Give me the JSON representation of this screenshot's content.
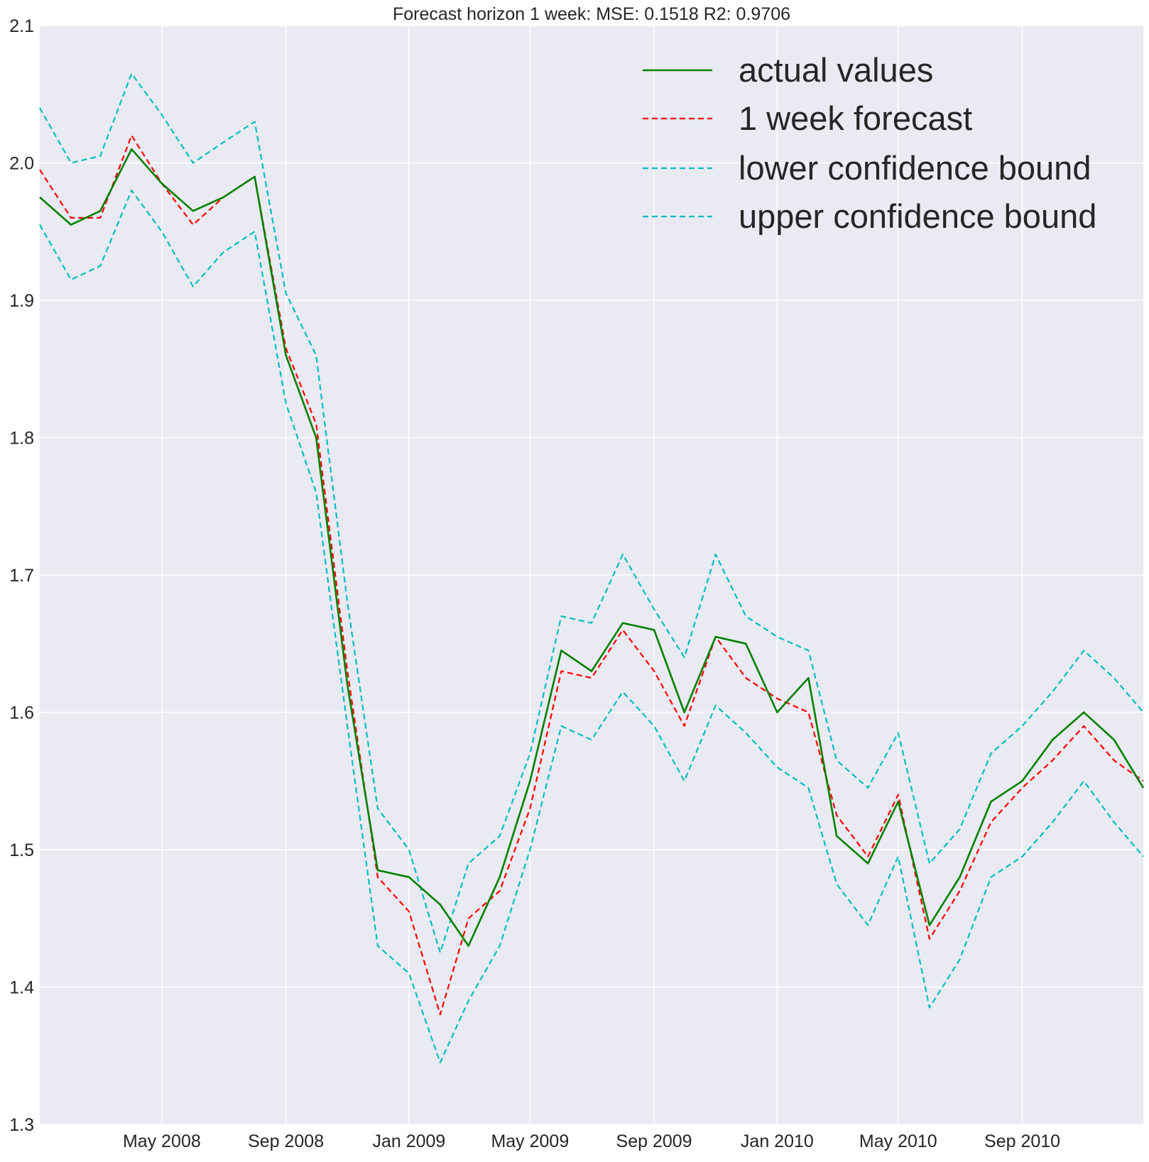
{
  "chart_data": {
    "type": "line",
    "title": "Forecast horizon 1 week:  MSE: 0.1518  R2: 0.9706",
    "xlabel": "",
    "ylabel": "",
    "ylim": [
      1.3,
      2.1
    ],
    "yticks": [
      "1.3",
      "1.4",
      "1.5",
      "1.6",
      "1.7",
      "1.8",
      "1.9",
      "2.0",
      "2.1"
    ],
    "xlim": [
      "2008-01-01",
      "2010-12-30"
    ],
    "xticks": [
      {
        "label": "May 2008",
        "date": "2008-05-01"
      },
      {
        "label": "Sep 2008",
        "date": "2008-09-01"
      },
      {
        "label": "Jan 2009",
        "date": "2009-01-01"
      },
      {
        "label": "May 2009",
        "date": "2009-05-01"
      },
      {
        "label": "Sep 2009",
        "date": "2009-09-01"
      },
      {
        "label": "Jan 2010",
        "date": "2010-01-01"
      },
      {
        "label": "May 2010",
        "date": "2010-05-01"
      },
      {
        "label": "Sep 2010",
        "date": "2010-09-01"
      }
    ],
    "grid": true,
    "legend_position": "top-right",
    "colors": {
      "background": "#eaeaf2",
      "grid": "#ffffff",
      "actual": "#008000",
      "forecast": "#ff0000",
      "bounds": "#00bfbf"
    },
    "x": [
      "2008-01-01",
      "2008-02-01",
      "2008-03-01",
      "2008-04-01",
      "2008-05-01",
      "2008-06-01",
      "2008-07-01",
      "2008-08-01",
      "2008-09-01",
      "2008-10-01",
      "2008-11-01",
      "2008-12-01",
      "2009-01-01",
      "2009-02-01",
      "2009-03-01",
      "2009-04-01",
      "2009-05-01",
      "2009-06-01",
      "2009-07-01",
      "2009-08-01",
      "2009-09-01",
      "2009-10-01",
      "2009-11-01",
      "2009-12-01",
      "2010-01-01",
      "2010-02-01",
      "2010-03-01",
      "2010-04-01",
      "2010-05-01",
      "2010-06-01",
      "2010-07-01",
      "2010-08-01",
      "2010-09-01",
      "2010-10-01",
      "2010-11-01",
      "2010-12-01",
      "2010-12-30"
    ],
    "series": [
      {
        "name": "actual values",
        "style": "solid",
        "values": [
          1.975,
          1.955,
          1.965,
          2.01,
          1.985,
          1.965,
          1.975,
          1.99,
          1.86,
          1.8,
          1.62,
          1.485,
          1.48,
          1.46,
          1.43,
          1.48,
          1.55,
          1.645,
          1.63,
          1.665,
          1.66,
          1.6,
          1.655,
          1.65,
          1.6,
          1.625,
          1.51,
          1.49,
          1.535,
          1.445,
          1.48,
          1.535,
          1.55,
          1.58,
          1.6,
          1.58,
          1.545
        ]
      },
      {
        "name": "1 week forecast",
        "style": "dashed",
        "values": [
          1.995,
          1.96,
          1.96,
          2.02,
          1.985,
          1.955,
          1.975,
          1.99,
          1.865,
          1.81,
          1.63,
          1.48,
          1.455,
          1.38,
          1.45,
          1.47,
          1.53,
          1.63,
          1.625,
          1.66,
          1.63,
          1.59,
          1.655,
          1.625,
          1.61,
          1.6,
          1.525,
          1.495,
          1.54,
          1.435,
          1.47,
          1.52,
          1.545,
          1.565,
          1.59,
          1.565,
          1.55
        ]
      },
      {
        "name": "lower confidence bound",
        "style": "dashed",
        "values": [
          1.955,
          1.915,
          1.925,
          1.98,
          1.95,
          1.91,
          1.935,
          1.95,
          1.825,
          1.76,
          1.59,
          1.43,
          1.41,
          1.345,
          1.39,
          1.43,
          1.5,
          1.59,
          1.58,
          1.615,
          1.59,
          1.55,
          1.605,
          1.585,
          1.56,
          1.545,
          1.475,
          1.445,
          1.495,
          1.385,
          1.42,
          1.48,
          1.495,
          1.52,
          1.55,
          1.52,
          1.495
        ]
      },
      {
        "name": "upper confidence bound",
        "style": "dashed",
        "values": [
          2.04,
          2.0,
          2.005,
          2.065,
          2.035,
          2.0,
          2.015,
          2.03,
          1.905,
          1.86,
          1.68,
          1.53,
          1.5,
          1.425,
          1.49,
          1.51,
          1.57,
          1.67,
          1.665,
          1.715,
          1.675,
          1.64,
          1.715,
          1.67,
          1.655,
          1.645,
          1.565,
          1.545,
          1.585,
          1.49,
          1.515,
          1.57,
          1.59,
          1.615,
          1.645,
          1.625,
          1.6
        ]
      }
    ]
  }
}
